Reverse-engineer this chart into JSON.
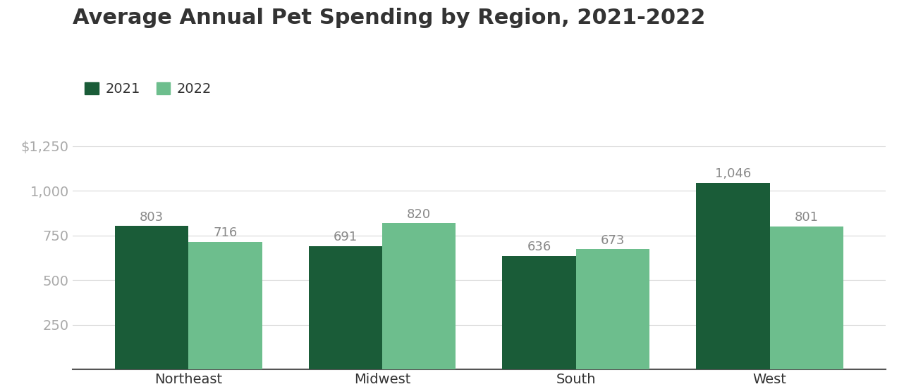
{
  "title": "Average Annual Pet Spending by Region, 2021-2022",
  "categories": [
    "Northeast",
    "Midwest",
    "South",
    "West"
  ],
  "series": [
    {
      "label": "2021",
      "values": [
        803,
        691,
        636,
        1046
      ],
      "color": "#1a5c38"
    },
    {
      "label": "2022",
      "values": [
        716,
        820,
        673,
        801
      ],
      "color": "#6dbe8d"
    }
  ],
  "ylim": [
    0,
    1350
  ],
  "yticks": [
    0,
    250,
    500,
    750,
    1000,
    1250
  ],
  "ytick_labels": [
    "",
    "250",
    "500",
    "750",
    "1,000",
    "$1,250"
  ],
  "bar_width": 0.38,
  "title_fontsize": 22,
  "legend_fontsize": 14,
  "tick_fontsize": 14,
  "label_fontsize": 13,
  "background_color": "#ffffff",
  "grid_color": "#d8d8d8",
  "text_color": "#333333",
  "tick_color": "#aaaaaa",
  "value_label_color": "#888888"
}
